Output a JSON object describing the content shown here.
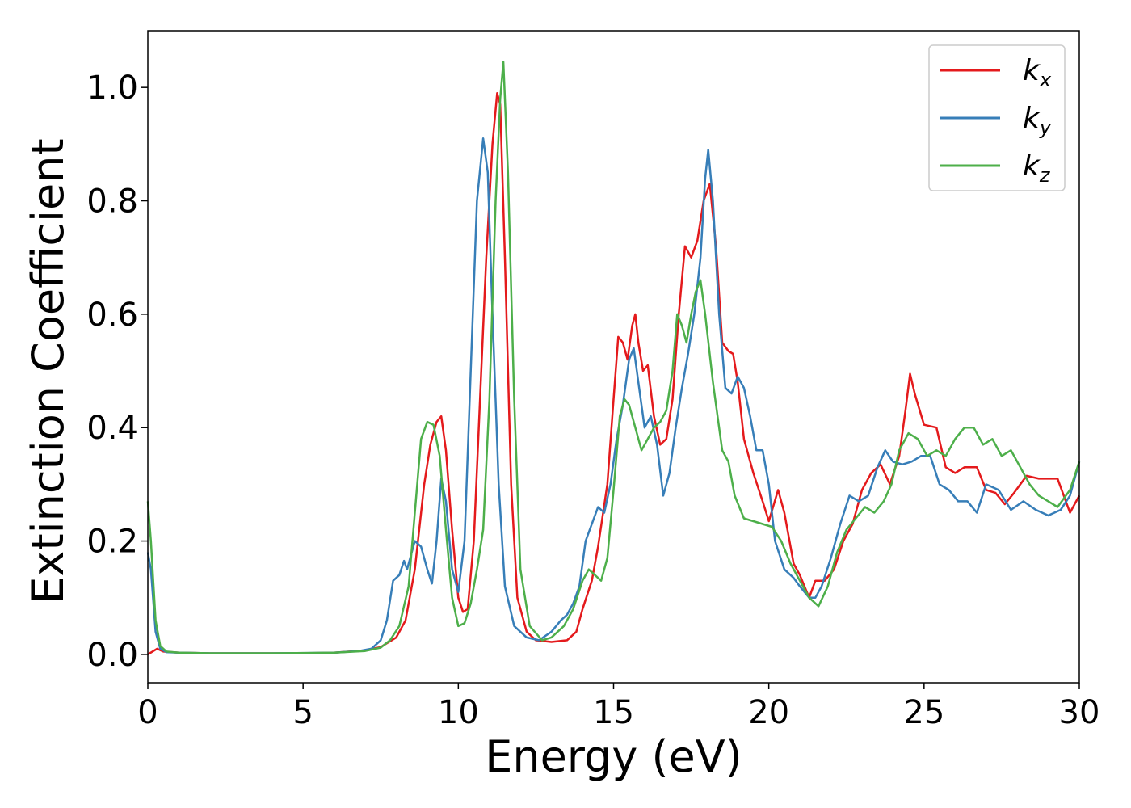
{
  "chart_data": {
    "type": "line",
    "title": "",
    "xlabel": "Energy (eV)",
    "ylabel": "Extinction Coefficient",
    "xlim": [
      0,
      30
    ],
    "ylim": [
      -0.05,
      1.1
    ],
    "xticks": [
      0,
      5,
      10,
      15,
      20,
      25,
      30
    ],
    "yticks": [
      0.0,
      0.2,
      0.4,
      0.6,
      0.8,
      1.0
    ],
    "grid": false,
    "legend_position": "top-right",
    "series": [
      {
        "name": "k_x",
        "label_main": "k",
        "label_sub": "x",
        "color": "#e41a1c",
        "points": [
          [
            0,
            0.0
          ],
          [
            0.3,
            0.01
          ],
          [
            0.5,
            0.005
          ],
          [
            1,
            0.003
          ],
          [
            2,
            0.002
          ],
          [
            3,
            0.002
          ],
          [
            4,
            0.002
          ],
          [
            5,
            0.002
          ],
          [
            6,
            0.003
          ],
          [
            7,
            0.007
          ],
          [
            7.5,
            0.013
          ],
          [
            8,
            0.03
          ],
          [
            8.3,
            0.06
          ],
          [
            8.6,
            0.15
          ],
          [
            8.9,
            0.3
          ],
          [
            9.1,
            0.37
          ],
          [
            9.3,
            0.41
          ],
          [
            9.45,
            0.42
          ],
          [
            9.6,
            0.36
          ],
          [
            9.8,
            0.22
          ],
          [
            10,
            0.1
          ],
          [
            10.15,
            0.075
          ],
          [
            10.3,
            0.08
          ],
          [
            10.5,
            0.2
          ],
          [
            10.7,
            0.45
          ],
          [
            10.9,
            0.7
          ],
          [
            11.1,
            0.9
          ],
          [
            11.25,
            0.99
          ],
          [
            11.35,
            0.97
          ],
          [
            11.5,
            0.7
          ],
          [
            11.7,
            0.3
          ],
          [
            11.9,
            0.1
          ],
          [
            12.2,
            0.04
          ],
          [
            12.5,
            0.025
          ],
          [
            13,
            0.022
          ],
          [
            13.5,
            0.025
          ],
          [
            13.8,
            0.04
          ],
          [
            14,
            0.08
          ],
          [
            14.3,
            0.13
          ],
          [
            14.5,
            0.19
          ],
          [
            14.8,
            0.3
          ],
          [
            15,
            0.45
          ],
          [
            15.15,
            0.56
          ],
          [
            15.3,
            0.55
          ],
          [
            15.45,
            0.52
          ],
          [
            15.6,
            0.58
          ],
          [
            15.7,
            0.6
          ],
          [
            15.8,
            0.55
          ],
          [
            15.95,
            0.5
          ],
          [
            16.1,
            0.51
          ],
          [
            16.3,
            0.42
          ],
          [
            16.5,
            0.37
          ],
          [
            16.7,
            0.38
          ],
          [
            16.9,
            0.45
          ],
          [
            17.1,
            0.6
          ],
          [
            17.3,
            0.72
          ],
          [
            17.5,
            0.7
          ],
          [
            17.7,
            0.73
          ],
          [
            17.9,
            0.8
          ],
          [
            18.1,
            0.83
          ],
          [
            18.3,
            0.72
          ],
          [
            18.5,
            0.55
          ],
          [
            18.7,
            0.535
          ],
          [
            18.85,
            0.53
          ],
          [
            19,
            0.48
          ],
          [
            19.2,
            0.38
          ],
          [
            19.5,
            0.32
          ],
          [
            19.8,
            0.27
          ],
          [
            20,
            0.235
          ],
          [
            20.3,
            0.29
          ],
          [
            20.5,
            0.25
          ],
          [
            20.8,
            0.16
          ],
          [
            21,
            0.14
          ],
          [
            21.3,
            0.1
          ],
          [
            21.5,
            0.13
          ],
          [
            21.8,
            0.13
          ],
          [
            22.1,
            0.15
          ],
          [
            22.4,
            0.2
          ],
          [
            22.7,
            0.23
          ],
          [
            23,
            0.29
          ],
          [
            23.3,
            0.32
          ],
          [
            23.6,
            0.335
          ],
          [
            23.9,
            0.3
          ],
          [
            24.2,
            0.35
          ],
          [
            24.4,
            0.43
          ],
          [
            24.55,
            0.495
          ],
          [
            24.7,
            0.46
          ],
          [
            25,
            0.405
          ],
          [
            25.4,
            0.4
          ],
          [
            25.7,
            0.33
          ],
          [
            26,
            0.32
          ],
          [
            26.3,
            0.33
          ],
          [
            26.7,
            0.33
          ],
          [
            27,
            0.29
          ],
          [
            27.3,
            0.285
          ],
          [
            27.6,
            0.265
          ],
          [
            27.9,
            0.285
          ],
          [
            28.3,
            0.315
          ],
          [
            28.7,
            0.31
          ],
          [
            29,
            0.31
          ],
          [
            29.3,
            0.31
          ],
          [
            29.7,
            0.25
          ],
          [
            30,
            0.28
          ]
        ]
      },
      {
        "name": "k_y",
        "label_main": "k",
        "label_sub": "y",
        "color": "#377eb8",
        "points": [
          [
            0,
            0.18
          ],
          [
            0.1,
            0.15
          ],
          [
            0.25,
            0.04
          ],
          [
            0.4,
            0.01
          ],
          [
            0.6,
            0.004
          ],
          [
            1,
            0.003
          ],
          [
            2,
            0.002
          ],
          [
            4,
            0.002
          ],
          [
            6,
            0.003
          ],
          [
            6.8,
            0.006
          ],
          [
            7.2,
            0.01
          ],
          [
            7.5,
            0.025
          ],
          [
            7.7,
            0.06
          ],
          [
            7.9,
            0.13
          ],
          [
            8.1,
            0.14
          ],
          [
            8.25,
            0.165
          ],
          [
            8.35,
            0.15
          ],
          [
            8.6,
            0.2
          ],
          [
            8.8,
            0.19
          ],
          [
            9.0,
            0.15
          ],
          [
            9.15,
            0.125
          ],
          [
            9.3,
            0.2
          ],
          [
            9.45,
            0.31
          ],
          [
            9.6,
            0.27
          ],
          [
            9.8,
            0.15
          ],
          [
            10,
            0.11
          ],
          [
            10.2,
            0.2
          ],
          [
            10.4,
            0.5
          ],
          [
            10.6,
            0.8
          ],
          [
            10.8,
            0.91
          ],
          [
            10.95,
            0.85
          ],
          [
            11.1,
            0.6
          ],
          [
            11.3,
            0.3
          ],
          [
            11.5,
            0.12
          ],
          [
            11.8,
            0.05
          ],
          [
            12.2,
            0.03
          ],
          [
            12.6,
            0.025
          ],
          [
            13,
            0.04
          ],
          [
            13.3,
            0.06
          ],
          [
            13.5,
            0.07
          ],
          [
            13.7,
            0.09
          ],
          [
            13.9,
            0.12
          ],
          [
            14.1,
            0.2
          ],
          [
            14.3,
            0.23
          ],
          [
            14.5,
            0.26
          ],
          [
            14.7,
            0.25
          ],
          [
            14.9,
            0.3
          ],
          [
            15.1,
            0.38
          ],
          [
            15.3,
            0.44
          ],
          [
            15.5,
            0.52
          ],
          [
            15.65,
            0.54
          ],
          [
            15.8,
            0.48
          ],
          [
            16,
            0.4
          ],
          [
            16.2,
            0.42
          ],
          [
            16.4,
            0.37
          ],
          [
            16.6,
            0.28
          ],
          [
            16.8,
            0.32
          ],
          [
            17,
            0.4
          ],
          [
            17.2,
            0.47
          ],
          [
            17.4,
            0.53
          ],
          [
            17.6,
            0.6
          ],
          [
            17.8,
            0.7
          ],
          [
            17.95,
            0.84
          ],
          [
            18.05,
            0.89
          ],
          [
            18.2,
            0.8
          ],
          [
            18.4,
            0.6
          ],
          [
            18.6,
            0.47
          ],
          [
            18.8,
            0.46
          ],
          [
            19,
            0.49
          ],
          [
            19.2,
            0.47
          ],
          [
            19.4,
            0.42
          ],
          [
            19.6,
            0.36
          ],
          [
            19.8,
            0.36
          ],
          [
            20,
            0.3
          ],
          [
            20.2,
            0.2
          ],
          [
            20.5,
            0.15
          ],
          [
            20.8,
            0.135
          ],
          [
            21,
            0.12
          ],
          [
            21.3,
            0.1
          ],
          [
            21.5,
            0.1
          ],
          [
            21.7,
            0.12
          ],
          [
            22,
            0.17
          ],
          [
            22.3,
            0.23
          ],
          [
            22.6,
            0.28
          ],
          [
            22.9,
            0.27
          ],
          [
            23.2,
            0.28
          ],
          [
            23.5,
            0.33
          ],
          [
            23.75,
            0.36
          ],
          [
            24,
            0.34
          ],
          [
            24.3,
            0.335
          ],
          [
            24.6,
            0.34
          ],
          [
            24.9,
            0.35
          ],
          [
            25.2,
            0.35
          ],
          [
            25.5,
            0.3
          ],
          [
            25.8,
            0.29
          ],
          [
            26.1,
            0.27
          ],
          [
            26.4,
            0.27
          ],
          [
            26.7,
            0.25
          ],
          [
            27,
            0.3
          ],
          [
            27.4,
            0.29
          ],
          [
            27.8,
            0.255
          ],
          [
            28.2,
            0.27
          ],
          [
            28.6,
            0.255
          ],
          [
            29,
            0.245
          ],
          [
            29.4,
            0.255
          ],
          [
            29.7,
            0.28
          ],
          [
            30,
            0.34
          ]
        ]
      },
      {
        "name": "k_z",
        "label_main": "k",
        "label_sub": "z",
        "color": "#4daf4a",
        "points": [
          [
            0,
            0.27
          ],
          [
            0.1,
            0.2
          ],
          [
            0.25,
            0.06
          ],
          [
            0.4,
            0.015
          ],
          [
            0.6,
            0.005
          ],
          [
            1,
            0.003
          ],
          [
            2,
            0.002
          ],
          [
            4,
            0.002
          ],
          [
            6,
            0.003
          ],
          [
            7,
            0.006
          ],
          [
            7.5,
            0.012
          ],
          [
            7.8,
            0.025
          ],
          [
            8.1,
            0.05
          ],
          [
            8.4,
            0.12
          ],
          [
            8.6,
            0.25
          ],
          [
            8.8,
            0.38
          ],
          [
            9.0,
            0.41
          ],
          [
            9.2,
            0.405
          ],
          [
            9.4,
            0.35
          ],
          [
            9.6,
            0.22
          ],
          [
            9.8,
            0.1
          ],
          [
            10,
            0.05
          ],
          [
            10.2,
            0.055
          ],
          [
            10.4,
            0.09
          ],
          [
            10.6,
            0.15
          ],
          [
            10.8,
            0.22
          ],
          [
            11,
            0.45
          ],
          [
            11.2,
            0.8
          ],
          [
            11.35,
            0.98
          ],
          [
            11.45,
            1.045
          ],
          [
            11.6,
            0.85
          ],
          [
            11.8,
            0.45
          ],
          [
            12,
            0.15
          ],
          [
            12.3,
            0.05
          ],
          [
            12.7,
            0.025
          ],
          [
            13,
            0.03
          ],
          [
            13.4,
            0.05
          ],
          [
            13.7,
            0.08
          ],
          [
            14,
            0.13
          ],
          [
            14.2,
            0.15
          ],
          [
            14.4,
            0.14
          ],
          [
            14.6,
            0.13
          ],
          [
            14.8,
            0.17
          ],
          [
            15,
            0.29
          ],
          [
            15.2,
            0.42
          ],
          [
            15.35,
            0.45
          ],
          [
            15.5,
            0.44
          ],
          [
            15.7,
            0.4
          ],
          [
            15.9,
            0.36
          ],
          [
            16.1,
            0.38
          ],
          [
            16.3,
            0.4
          ],
          [
            16.5,
            0.41
          ],
          [
            16.7,
            0.43
          ],
          [
            16.9,
            0.5
          ],
          [
            17.05,
            0.6
          ],
          [
            17.2,
            0.58
          ],
          [
            17.35,
            0.55
          ],
          [
            17.5,
            0.6
          ],
          [
            17.65,
            0.64
          ],
          [
            17.8,
            0.66
          ],
          [
            17.95,
            0.6
          ],
          [
            18.2,
            0.48
          ],
          [
            18.5,
            0.36
          ],
          [
            18.7,
            0.34
          ],
          [
            18.9,
            0.28
          ],
          [
            19.2,
            0.24
          ],
          [
            19.5,
            0.235
          ],
          [
            19.8,
            0.23
          ],
          [
            20.1,
            0.225
          ],
          [
            20.4,
            0.2
          ],
          [
            20.7,
            0.16
          ],
          [
            21,
            0.13
          ],
          [
            21.3,
            0.1
          ],
          [
            21.6,
            0.085
          ],
          [
            21.9,
            0.12
          ],
          [
            22.2,
            0.18
          ],
          [
            22.5,
            0.22
          ],
          [
            22.8,
            0.24
          ],
          [
            23.1,
            0.26
          ],
          [
            23.4,
            0.25
          ],
          [
            23.7,
            0.27
          ],
          [
            23.95,
            0.3
          ],
          [
            24.2,
            0.36
          ],
          [
            24.5,
            0.39
          ],
          [
            24.8,
            0.38
          ],
          [
            25.1,
            0.35
          ],
          [
            25.4,
            0.36
          ],
          [
            25.7,
            0.35
          ],
          [
            26,
            0.38
          ],
          [
            26.3,
            0.4
          ],
          [
            26.6,
            0.4
          ],
          [
            26.9,
            0.37
          ],
          [
            27.2,
            0.38
          ],
          [
            27.5,
            0.35
          ],
          [
            27.8,
            0.36
          ],
          [
            28.1,
            0.33
          ],
          [
            28.4,
            0.3
          ],
          [
            28.7,
            0.28
          ],
          [
            29,
            0.27
          ],
          [
            29.3,
            0.26
          ],
          [
            29.7,
            0.29
          ],
          [
            30,
            0.34
          ]
        ]
      }
    ]
  }
}
